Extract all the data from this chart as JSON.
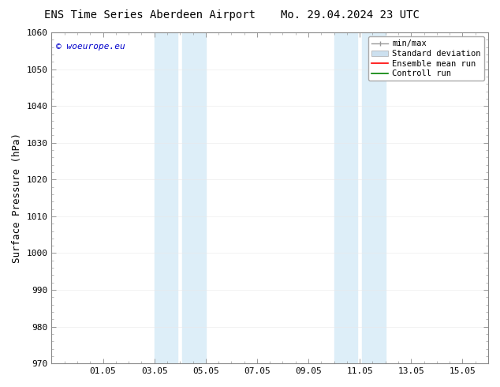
{
  "title_left": "ENS Time Series Aberdeen Airport",
  "title_right": "Mo. 29.04.2024 23 UTC",
  "ylabel": "Surface Pressure (hPa)",
  "ylim": [
    970,
    1060
  ],
  "yticks": [
    970,
    980,
    990,
    1000,
    1010,
    1020,
    1030,
    1040,
    1050,
    1060
  ],
  "xtick_labels": [
    "01.05",
    "03.05",
    "05.05",
    "07.05",
    "09.05",
    "11.05",
    "13.05",
    "15.05"
  ],
  "xtick_positions": [
    2,
    4,
    6,
    8,
    10,
    12,
    14,
    16
  ],
  "xlim": [
    0,
    17
  ],
  "shaded_bands": [
    {
      "x_start": 4.0,
      "x_end": 4.9,
      "color": "#ddeef8"
    },
    {
      "x_start": 5.1,
      "x_end": 6.0,
      "color": "#ddeef8"
    },
    {
      "x_start": 11.0,
      "x_end": 11.9,
      "color": "#ddeef8"
    },
    {
      "x_start": 12.1,
      "x_end": 13.0,
      "color": "#ddeef8"
    }
  ],
  "watermark_text": "© woeurope.eu",
  "watermark_color": "#0000cc",
  "bg_color": "#ffffff",
  "spine_color": "#888888",
  "tick_color": "#333333",
  "title_fontsize": 10,
  "tick_fontsize": 8,
  "ylabel_fontsize": 9,
  "watermark_fontsize": 8,
  "legend_fontsize": 7.5
}
